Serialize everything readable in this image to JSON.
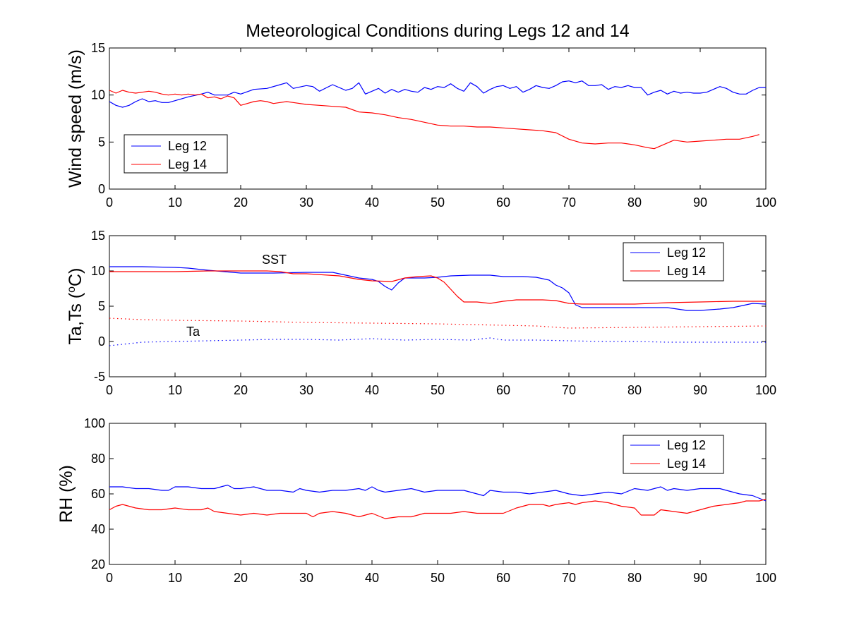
{
  "chart_data": [
    {
      "type": "line",
      "title": "Meteorological Conditions during Legs 12 and 14",
      "xlabel": "",
      "ylabel": "Wind speed (m/s)",
      "xlim": [
        0,
        100
      ],
      "ylim": [
        0,
        15
      ],
      "xticks": [
        "0",
        "10",
        "20",
        "30",
        "40",
        "50",
        "60",
        "70",
        "80",
        "90",
        "100"
      ],
      "yticks": [
        "0",
        "5",
        "10",
        "15"
      ],
      "legend": [
        "Leg 12",
        "Leg 14"
      ],
      "legend_position": "left",
      "series": [
        {
          "name": "Leg 12",
          "color": "#0000ff",
          "style": "solid",
          "x": [
            0,
            1,
            2,
            3,
            4,
            5,
            6,
            7,
            8,
            9,
            10,
            12,
            14,
            15,
            16,
            18,
            19,
            20,
            22,
            24,
            26,
            27,
            28,
            30,
            31,
            32,
            34,
            36,
            37,
            38,
            39,
            40,
            41,
            42,
            43,
            44,
            45,
            46,
            47,
            48,
            49,
            50,
            51,
            52,
            53,
            54,
            55,
            56,
            57,
            58,
            59,
            60,
            61,
            62,
            63,
            64,
            65,
            66,
            67,
            68,
            69,
            70,
            71,
            72,
            73,
            74,
            75,
            76,
            77,
            78,
            79,
            80,
            81,
            82,
            83,
            84,
            85,
            86,
            87,
            88,
            89,
            90,
            91,
            92,
            93,
            94,
            95,
            96,
            97,
            98,
            99,
            100
          ],
          "y": [
            9.3,
            8.9,
            8.7,
            8.9,
            9.3,
            9.6,
            9.3,
            9.4,
            9.2,
            9.2,
            9.4,
            9.8,
            10.1,
            10.3,
            10.0,
            10.0,
            10.3,
            10.1,
            10.6,
            10.7,
            11.1,
            11.3,
            10.7,
            11.0,
            10.9,
            10.4,
            11.1,
            10.5,
            10.7,
            11.3,
            10.1,
            10.4,
            10.7,
            10.2,
            10.6,
            10.3,
            10.6,
            10.4,
            10.3,
            10.8,
            10.6,
            10.9,
            10.8,
            11.2,
            10.7,
            10.4,
            11.3,
            10.9,
            10.2,
            10.6,
            10.9,
            11.0,
            10.7,
            10.9,
            10.3,
            10.6,
            11.0,
            10.8,
            10.7,
            11.0,
            11.4,
            11.5,
            11.3,
            11.5,
            11.0,
            11.0,
            11.1,
            10.6,
            10.9,
            10.8,
            11.0,
            10.8,
            10.8,
            10.0,
            10.3,
            10.5,
            10.1,
            10.4,
            10.2,
            10.3,
            10.2,
            10.2,
            10.3,
            10.6,
            10.9,
            10.7,
            10.3,
            10.1,
            10.1,
            10.5,
            10.8,
            10.8
          ]
        },
        {
          "name": "Leg 14",
          "color": "#ff0000",
          "style": "solid",
          "x": [
            0,
            1,
            2,
            3,
            4,
            5,
            6,
            7,
            8,
            9,
            10,
            11,
            12,
            13,
            14,
            15,
            16,
            17,
            18,
            19,
            20,
            21,
            22,
            23,
            24,
            25,
            26,
            27,
            28,
            30,
            32,
            34,
            36,
            38,
            40,
            42,
            44,
            46,
            48,
            50,
            52,
            54,
            56,
            58,
            60,
            62,
            64,
            66,
            68,
            70,
            72,
            74,
            76,
            78,
            80,
            82,
            83,
            84,
            86,
            88,
            90,
            92,
            94,
            96,
            98,
            99
          ],
          "y": [
            10.5,
            10.2,
            10.5,
            10.3,
            10.2,
            10.3,
            10.4,
            10.3,
            10.1,
            10.0,
            10.1,
            10.0,
            10.1,
            10.0,
            10.1,
            9.7,
            9.8,
            9.6,
            9.9,
            9.7,
            8.9,
            9.1,
            9.3,
            9.4,
            9.3,
            9.1,
            9.2,
            9.3,
            9.2,
            9.0,
            8.9,
            8.8,
            8.7,
            8.2,
            8.1,
            7.9,
            7.6,
            7.4,
            7.1,
            6.8,
            6.7,
            6.7,
            6.6,
            6.6,
            6.5,
            6.4,
            6.3,
            6.2,
            6.0,
            5.3,
            4.9,
            4.8,
            4.9,
            4.9,
            4.7,
            4.4,
            4.3,
            4.6,
            5.2,
            5.0,
            5.1,
            5.2,
            5.3,
            5.3,
            5.6,
            5.8
          ]
        }
      ]
    },
    {
      "type": "line",
      "title": "",
      "xlabel": "",
      "ylabel": "Ta,Ts (",
      "ylabel_sup": "o",
      "ylabel_tail": "C)",
      "xlim": [
        0,
        100
      ],
      "ylim": [
        -5,
        15
      ],
      "xticks": [
        "0",
        "10",
        "20",
        "30",
        "40",
        "50",
        "60",
        "70",
        "80",
        "90",
        "100"
      ],
      "yticks": [
        "-5",
        "0",
        "5",
        "10",
        "15"
      ],
      "legend": [
        "Leg 12",
        "Leg 14"
      ],
      "legend_position": "top-right",
      "annotations": [
        {
          "text": "SST",
          "x": 25,
          "y": 11.6
        },
        {
          "text": "Ta",
          "x": 13,
          "y": 1.3
        }
      ],
      "series": [
        {
          "name": "Leg 12",
          "color": "#0000ff",
          "style": "solid",
          "x": [
            0,
            5,
            10,
            12,
            15,
            20,
            25,
            30,
            32,
            34,
            36,
            38,
            40,
            41,
            42,
            43,
            44,
            45,
            46,
            48,
            50,
            52,
            55,
            58,
            60,
            63,
            65,
            67,
            68,
            69,
            70,
            71,
            72,
            75,
            80,
            85,
            88,
            90,
            93,
            95,
            98,
            100
          ],
          "y": [
            10.6,
            10.6,
            10.5,
            10.4,
            10.1,
            9.7,
            9.7,
            9.8,
            9.8,
            9.8,
            9.4,
            9.0,
            8.8,
            8.5,
            7.8,
            7.3,
            8.3,
            9.0,
            9.0,
            9.0,
            9.1,
            9.3,
            9.4,
            9.4,
            9.2,
            9.2,
            9.1,
            8.7,
            8.0,
            7.6,
            6.9,
            5.2,
            4.8,
            4.8,
            4.8,
            4.8,
            4.4,
            4.4,
            4.6,
            4.8,
            5.4,
            5.3
          ]
        },
        {
          "name": "Leg 14",
          "color": "#ff0000",
          "style": "solid",
          "x": [
            0,
            5,
            10,
            15,
            20,
            22,
            24,
            26,
            28,
            30,
            35,
            38,
            40,
            43,
            45,
            47,
            49,
            50,
            51,
            52,
            53,
            54,
            56,
            58,
            60,
            62,
            64,
            66,
            68,
            70,
            72,
            80,
            85,
            90,
            95,
            100
          ],
          "y": [
            9.9,
            9.9,
            9.9,
            10.0,
            10.0,
            10.0,
            10.0,
            9.9,
            9.6,
            9.6,
            9.3,
            8.8,
            8.6,
            8.5,
            9.0,
            9.2,
            9.3,
            9.0,
            8.4,
            7.4,
            6.4,
            5.6,
            5.6,
            5.4,
            5.7,
            5.9,
            5.9,
            5.9,
            5.8,
            5.4,
            5.3,
            5.3,
            5.5,
            5.6,
            5.7,
            5.7
          ]
        },
        {
          "name": "Leg 14 Ta",
          "color": "#ff0000",
          "style": "dotted",
          "x": [
            0,
            5,
            10,
            20,
            30,
            40,
            50,
            60,
            65,
            70,
            80,
            90,
            100
          ],
          "y": [
            3.3,
            3.1,
            3.0,
            2.9,
            2.7,
            2.6,
            2.5,
            2.3,
            2.2,
            1.9,
            2.0,
            2.1,
            2.2
          ]
        },
        {
          "name": "Leg 12 Ta",
          "color": "#0000ff",
          "style": "dotted",
          "x": [
            0,
            2,
            5,
            10,
            15,
            20,
            25,
            30,
            35,
            40,
            45,
            50,
            55,
            58,
            60,
            65,
            70,
            75,
            80,
            85,
            90,
            95,
            100
          ],
          "y": [
            -0.6,
            -0.4,
            -0.1,
            0.0,
            0.1,
            0.2,
            0.3,
            0.3,
            0.2,
            0.4,
            0.2,
            0.3,
            0.2,
            0.5,
            0.2,
            0.2,
            0.1,
            0.0,
            0.0,
            -0.1,
            -0.1,
            -0.1,
            -0.1
          ]
        }
      ]
    },
    {
      "type": "line",
      "title": "",
      "xlabel": "",
      "ylabel": "RH (%)",
      "xlim": [
        0,
        100
      ],
      "ylim": [
        20,
        100
      ],
      "xticks": [
        "0",
        "10",
        "20",
        "30",
        "40",
        "50",
        "60",
        "70",
        "80",
        "90",
        "100"
      ],
      "yticks": [
        "20",
        "40",
        "60",
        "80",
        "100"
      ],
      "legend": [
        "Leg 12",
        "Leg 14"
      ],
      "legend_position": "top-right",
      "series": [
        {
          "name": "Leg 12",
          "color": "#0000ff",
          "style": "solid",
          "x": [
            0,
            2,
            4,
            6,
            8,
            9,
            10,
            12,
            14,
            16,
            18,
            19,
            20,
            22,
            24,
            26,
            28,
            29,
            30,
            32,
            34,
            36,
            38,
            39,
            40,
            41,
            42,
            44,
            46,
            48,
            50,
            52,
            54,
            55,
            56,
            57,
            58,
            60,
            62,
            64,
            66,
            68,
            70,
            72,
            74,
            76,
            78,
            80,
            82,
            84,
            85,
            86,
            88,
            90,
            92,
            93,
            94,
            96,
            98,
            100
          ],
          "y": [
            64,
            64,
            63,
            63,
            62,
            62,
            64,
            64,
            63,
            63,
            65,
            63,
            63,
            64,
            62,
            62,
            61,
            63,
            62,
            61,
            62,
            62,
            63,
            62,
            64,
            62,
            61,
            62,
            63,
            61,
            62,
            62,
            62,
            61,
            60,
            59,
            62,
            61,
            61,
            60,
            61,
            62,
            60,
            59,
            60,
            61,
            60,
            63,
            62,
            64,
            62,
            63,
            62,
            63,
            63,
            63,
            62,
            60,
            59,
            56
          ]
        },
        {
          "name": "Leg 14",
          "color": "#ff0000",
          "style": "solid",
          "x": [
            0,
            1,
            2,
            4,
            6,
            8,
            10,
            12,
            14,
            15,
            16,
            18,
            20,
            22,
            24,
            26,
            28,
            30,
            31,
            32,
            34,
            36,
            38,
            40,
            42,
            44,
            46,
            48,
            50,
            52,
            54,
            56,
            58,
            60,
            62,
            63,
            64,
            66,
            67,
            68,
            70,
            71,
            72,
            74,
            76,
            78,
            80,
            81,
            82,
            83,
            84,
            86,
            88,
            90,
            92,
            94,
            96,
            97,
            98,
            99,
            100
          ],
          "y": [
            51,
            53,
            54,
            52,
            51,
            51,
            52,
            51,
            51,
            52,
            50,
            49,
            48,
            49,
            48,
            49,
            49,
            49,
            47,
            49,
            50,
            49,
            47,
            49,
            46,
            47,
            47,
            49,
            49,
            49,
            50,
            49,
            49,
            49,
            52,
            53,
            54,
            54,
            53,
            54,
            55,
            54,
            55,
            56,
            55,
            53,
            52,
            48,
            48,
            48,
            51,
            50,
            49,
            51,
            53,
            54,
            55,
            56,
            56,
            56,
            57
          ]
        }
      ]
    }
  ]
}
